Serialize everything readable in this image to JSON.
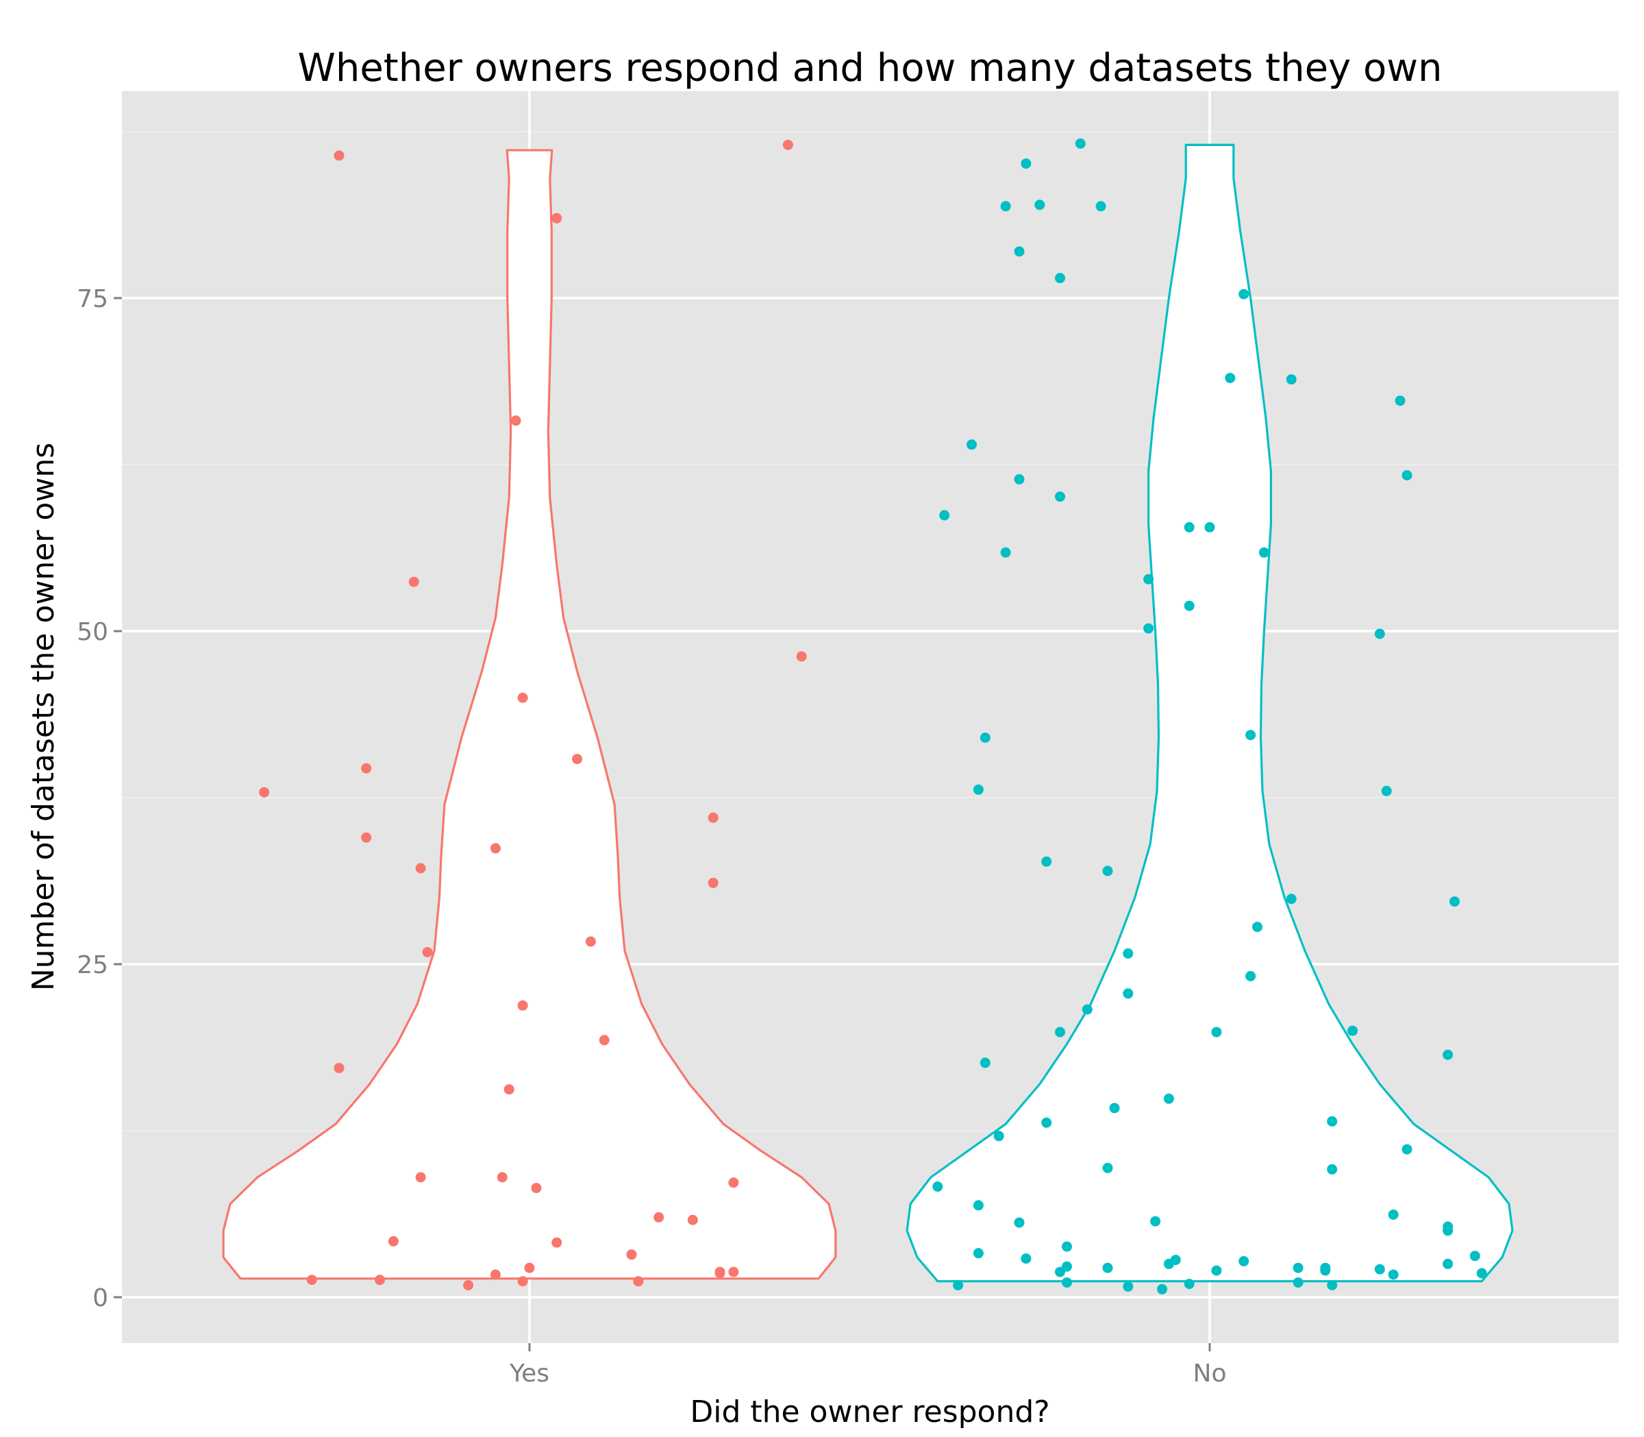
{
  "chart_data": {
    "type": "violin",
    "title": "Whether owners respond and how many datasets they own",
    "xlabel": "Did the owner respond?",
    "ylabel": "Number of datasets the owner owns",
    "categories": [
      "Yes",
      "No"
    ],
    "yticks": [
      0,
      25,
      50,
      75
    ],
    "ylim": [
      -3.5,
      90.5
    ],
    "grid": true,
    "legend": "none",
    "colors": {
      "Yes": "#F8766D",
      "No": "#00BFC4",
      "panel": "#E5E5E5",
      "grid": "#FFFFFF",
      "violin_fill": "#FFFFFF"
    },
    "violins": [
      {
        "name": "Yes",
        "ymin": 1.4,
        "ymax": 86.1,
        "profile": [
          [
            1.4,
            0.85
          ],
          [
            3,
            0.9
          ],
          [
            5,
            0.9
          ],
          [
            7,
            0.88
          ],
          [
            9,
            0.8
          ],
          [
            11,
            0.68
          ],
          [
            13,
            0.57
          ],
          [
            16,
            0.47
          ],
          [
            19,
            0.39
          ],
          [
            22,
            0.33
          ],
          [
            26,
            0.28
          ],
          [
            30,
            0.265
          ],
          [
            33,
            0.26
          ],
          [
            37,
            0.25
          ],
          [
            42,
            0.2
          ],
          [
            47,
            0.14
          ],
          [
            51,
            0.1
          ],
          [
            55,
            0.08
          ],
          [
            60,
            0.06
          ],
          [
            65,
            0.055
          ],
          [
            70,
            0.06
          ],
          [
            75,
            0.065
          ],
          [
            80,
            0.065
          ],
          [
            84,
            0.06
          ],
          [
            86.1,
            0.066
          ]
        ],
        "points": [
          [
            -0.39,
            37.9
          ],
          [
            -0.28,
            85.7
          ],
          [
            -0.28,
            17.2
          ],
          [
            -0.24,
            39.7
          ],
          [
            -0.24,
            34.5
          ],
          [
            -0.2,
            4.2
          ],
          [
            -0.17,
            53.7
          ],
          [
            -0.16,
            32.2
          ],
          [
            -0.16,
            9.0
          ],
          [
            -0.15,
            25.9
          ],
          [
            -0.32,
            1.3
          ],
          [
            -0.22,
            1.3
          ],
          [
            -0.09,
            0.9
          ],
          [
            -0.05,
            1.7
          ],
          [
            -0.05,
            33.7
          ],
          [
            -0.04,
            9.0
          ],
          [
            -0.03,
            15.6
          ],
          [
            -0.02,
            65.8
          ],
          [
            -0.01,
            45.0
          ],
          [
            -0.01,
            21.9
          ],
          [
            -0.01,
            1.2
          ],
          [
            0.0,
            2.2
          ],
          [
            0.01,
            8.2
          ],
          [
            0.04,
            81.0
          ],
          [
            0.04,
            4.1
          ],
          [
            0.07,
            40.4
          ],
          [
            0.09,
            26.7
          ],
          [
            0.11,
            19.3
          ],
          [
            0.15,
            3.2
          ],
          [
            0.16,
            1.2
          ],
          [
            0.19,
            6.0
          ],
          [
            0.24,
            5.8
          ],
          [
            0.27,
            36.0
          ],
          [
            0.27,
            31.1
          ],
          [
            0.28,
            1.8
          ],
          [
            0.28,
            1.9
          ],
          [
            0.3,
            1.9
          ],
          [
            0.3,
            8.6
          ],
          [
            0.38,
            86.5
          ],
          [
            0.4,
            48.1
          ]
        ]
      },
      {
        "name": "No",
        "ymin": 1.2,
        "ymax": 86.5,
        "profile": [
          [
            1.2,
            0.8
          ],
          [
            3,
            0.86
          ],
          [
            5,
            0.89
          ],
          [
            7,
            0.88
          ],
          [
            9,
            0.82
          ],
          [
            11,
            0.71
          ],
          [
            13,
            0.6
          ],
          [
            16,
            0.5
          ],
          [
            19,
            0.42
          ],
          [
            22,
            0.35
          ],
          [
            26,
            0.28
          ],
          [
            30,
            0.22
          ],
          [
            34,
            0.175
          ],
          [
            38,
            0.155
          ],
          [
            42,
            0.15
          ],
          [
            46,
            0.152
          ],
          [
            50,
            0.16
          ],
          [
            54,
            0.17
          ],
          [
            58,
            0.18
          ],
          [
            62,
            0.18
          ],
          [
            66,
            0.165
          ],
          [
            70,
            0.145
          ],
          [
            75,
            0.12
          ],
          [
            80,
            0.09
          ],
          [
            84,
            0.07
          ],
          [
            86.5,
            0.07
          ]
        ],
        "points": [
          [
            -0.4,
            8.3
          ],
          [
            -0.39,
            58.7
          ],
          [
            -0.37,
            0.9
          ],
          [
            -0.35,
            64.0
          ],
          [
            -0.34,
            3.3
          ],
          [
            -0.34,
            38.1
          ],
          [
            -0.34,
            6.9
          ],
          [
            -0.33,
            42.0
          ],
          [
            -0.33,
            17.6
          ],
          [
            -0.31,
            12.1
          ],
          [
            -0.3,
            81.9
          ],
          [
            -0.3,
            55.9
          ],
          [
            -0.28,
            78.5
          ],
          [
            -0.28,
            61.4
          ],
          [
            -0.28,
            5.6
          ],
          [
            -0.27,
            85.1
          ],
          [
            -0.27,
            2.9
          ],
          [
            -0.25,
            82.0
          ],
          [
            -0.24,
            32.7
          ],
          [
            -0.24,
            13.1
          ],
          [
            -0.22,
            76.5
          ],
          [
            -0.22,
            60.1
          ],
          [
            -0.22,
            19.9
          ],
          [
            -0.22,
            1.9
          ],
          [
            -0.21,
            2.3
          ],
          [
            -0.21,
            1.1
          ],
          [
            -0.21,
            3.8
          ],
          [
            -0.19,
            86.6
          ],
          [
            -0.18,
            21.6
          ],
          [
            -0.16,
            81.9
          ],
          [
            -0.15,
            32.0
          ],
          [
            -0.15,
            9.7
          ],
          [
            -0.15,
            2.2
          ],
          [
            -0.14,
            14.2
          ],
          [
            -0.12,
            25.8
          ],
          [
            -0.12,
            22.8
          ],
          [
            -0.12,
            0.8
          ],
          [
            -0.09,
            53.9
          ],
          [
            -0.09,
            50.2
          ],
          [
            -0.08,
            5.7
          ],
          [
            -0.07,
            0.6
          ],
          [
            -0.06,
            14.9
          ],
          [
            -0.06,
            2.5
          ],
          [
            -0.05,
            2.8
          ],
          [
            -0.03,
            57.8
          ],
          [
            -0.03,
            51.9
          ],
          [
            -0.03,
            1.0
          ],
          [
            0.0,
            57.8
          ],
          [
            0.01,
            19.9
          ],
          [
            0.01,
            2.0
          ],
          [
            0.03,
            69.0
          ],
          [
            0.05,
            75.3
          ],
          [
            0.05,
            2.7
          ],
          [
            0.06,
            42.2
          ],
          [
            0.06,
            24.1
          ],
          [
            0.07,
            27.8
          ],
          [
            0.08,
            55.9
          ],
          [
            0.12,
            29.9
          ],
          [
            0.12,
            68.9
          ],
          [
            0.13,
            2.2
          ],
          [
            0.13,
            1.1
          ],
          [
            0.17,
            2.0
          ],
          [
            0.17,
            2.2
          ],
          [
            0.18,
            13.2
          ],
          [
            0.18,
            9.6
          ],
          [
            0.18,
            0.9
          ],
          [
            0.21,
            20.0
          ],
          [
            0.25,
            2.1
          ],
          [
            0.25,
            49.8
          ],
          [
            0.26,
            38.0
          ],
          [
            0.27,
            1.7
          ],
          [
            0.27,
            6.2
          ],
          [
            0.28,
            67.3
          ],
          [
            0.29,
            61.7
          ],
          [
            0.29,
            11.1
          ],
          [
            0.35,
            2.5
          ],
          [
            0.35,
            18.2
          ],
          [
            0.35,
            5.3
          ],
          [
            0.35,
            5.0
          ],
          [
            0.36,
            29.7
          ],
          [
            0.39,
            3.1
          ],
          [
            0.4,
            1.8
          ]
        ]
      }
    ]
  }
}
